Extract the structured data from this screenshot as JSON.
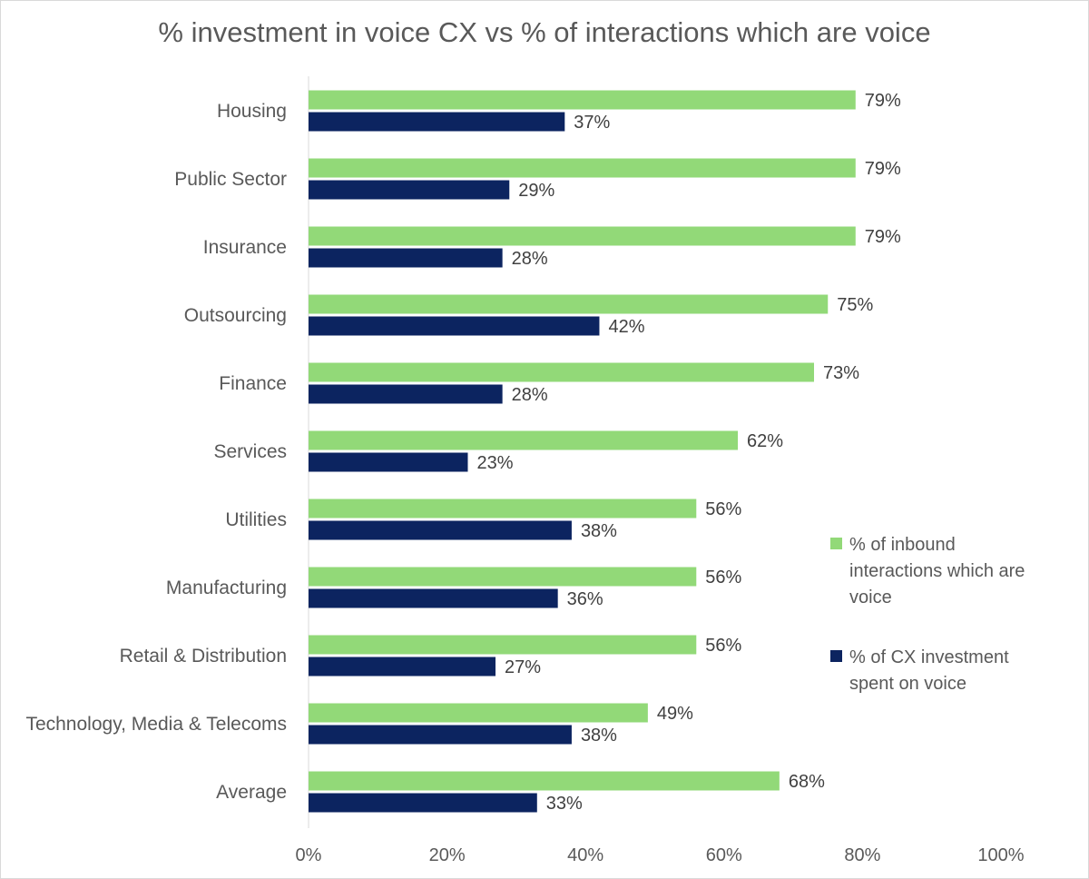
{
  "chart_data": {
    "type": "bar",
    "orientation": "horizontal",
    "title": "% investment in voice CX vs % of interactions which are voice",
    "categories": [
      "Housing",
      "Public Sector",
      "Insurance",
      "Outsourcing",
      "Finance",
      "Services",
      "Utilities",
      "Manufacturing",
      "Retail & Distribution",
      "Technology, Media & Telecoms",
      "Average"
    ],
    "series": [
      {
        "name": "% of inbound interactions which are voice",
        "color": "#92d978",
        "values": [
          79,
          79,
          79,
          75,
          73,
          62,
          56,
          56,
          56,
          49,
          68
        ],
        "labels": [
          "79%",
          "79%",
          "79%",
          "75%",
          "73%",
          "62%",
          "56%",
          "56%",
          "56%",
          "49%",
          "68%"
        ]
      },
      {
        "name": "% of CX investment spent on voice",
        "color": "#0c2460",
        "values": [
          37,
          29,
          28,
          42,
          28,
          23,
          38,
          36,
          27,
          38,
          33
        ],
        "labels": [
          "37%",
          "29%",
          "28%",
          "42%",
          "28%",
          "23%",
          "38%",
          "36%",
          "27%",
          "38%",
          "33%"
        ]
      }
    ],
    "xlim": [
      0,
      100
    ],
    "xticks": [
      "0%",
      "20%",
      "40%",
      "60%",
      "80%",
      "100%"
    ],
    "grid": false,
    "legend_position": "right"
  }
}
